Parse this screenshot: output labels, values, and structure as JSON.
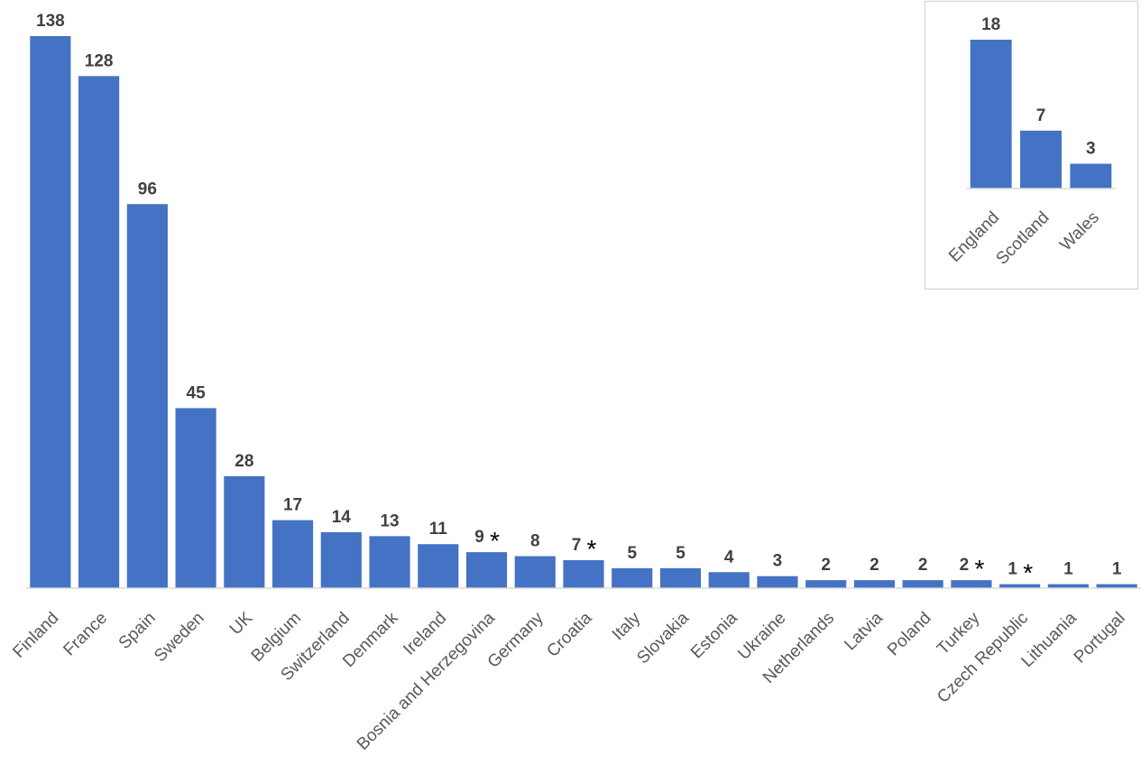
{
  "chart_data": [
    {
      "type": "bar",
      "categories": [
        "Finland",
        "France",
        "Spain",
        "Sweden",
        "UK",
        "Belgium",
        "Switzerland",
        "Denmark",
        "Ireland",
        "Bosnia and Herzegovina",
        "Germany",
        "Croatia",
        "Italy",
        "Slovakia",
        "Estonia",
        "Ukraine",
        "Netherlands",
        "Latvia",
        "Poland",
        "Turkey",
        "Czech Republic",
        "Lithuania",
        "Portugal"
      ],
      "values": [
        138,
        128,
        96,
        45,
        28,
        17,
        14,
        13,
        11,
        9,
        8,
        7,
        5,
        5,
        4,
        3,
        2,
        2,
        2,
        2,
        1,
        1,
        1
      ],
      "marked": [
        "Bosnia and Herzegovina",
        "Croatia",
        "Turkey",
        "Czech Republic"
      ],
      "marker_symbol": "*",
      "data_labels": true,
      "grid": false,
      "color": "#4472C4"
    },
    {
      "type": "bar",
      "categories": [
        "England",
        "Scotland",
        "Wales"
      ],
      "values": [
        18,
        7,
        3
      ],
      "data_labels": true,
      "grid": false,
      "color": "#4472C4",
      "inset_of": "UK"
    }
  ]
}
